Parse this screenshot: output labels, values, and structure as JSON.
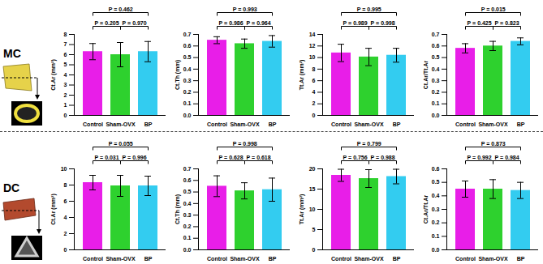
{
  "chart_data": [
    {
      "type": "bar",
      "panel_group": "MC",
      "ylabel": "Ct.Ar (mm²)",
      "categories": [
        "Control",
        "Sham-OVX",
        "BP"
      ],
      "values": [
        6.3,
        6.0,
        6.3
      ],
      "errors": [
        0.8,
        1.2,
        1.0
      ],
      "colors": [
        "#e81ee8",
        "#2ed12e",
        "#33ccf0"
      ],
      "ylim": [
        0,
        8
      ],
      "yticks": [
        0,
        1,
        2,
        3,
        4,
        5,
        6,
        7,
        8
      ],
      "p_values": [
        {
          "from": "Control",
          "to": "Sham-OVX",
          "label": "P = 0.205"
        },
        {
          "from": "Sham-OVX",
          "to": "BP",
          "label": "P = 0.970"
        },
        {
          "from": "Control",
          "to": "BP",
          "label": "P = 0.462"
        }
      ]
    },
    {
      "type": "bar",
      "panel_group": "MC",
      "ylabel": "Ct.Th (mm)",
      "categories": [
        "Control",
        "Sham-OVX",
        "BP"
      ],
      "values": [
        0.65,
        0.62,
        0.64
      ],
      "errors": [
        0.03,
        0.04,
        0.05
      ],
      "colors": [
        "#e81ee8",
        "#2ed12e",
        "#33ccf0"
      ],
      "ylim": [
        0,
        0.7
      ],
      "yticks": [
        {
          "value": 0,
          "label": "0.0"
        },
        0.1,
        0.2,
        0.3,
        0.4,
        0.5,
        0.6,
        0.7
      ],
      "p_values": [
        {
          "from": "Control",
          "to": "Sham-OVX",
          "label": "P = 0.986"
        },
        {
          "from": "Sham-OVX",
          "to": "BP",
          "label": "P = 0.964"
        },
        {
          "from": "Control",
          "to": "BP",
          "label": "P = 0.993"
        }
      ]
    },
    {
      "type": "bar",
      "panel_group": "MC",
      "ylabel": "Tt.Ar (mm²)",
      "categories": [
        "Control",
        "Sham-OVX",
        "BP"
      ],
      "values": [
        10.8,
        10.1,
        10.4
      ],
      "errors": [
        1.5,
        1.5,
        1.2
      ],
      "colors": [
        "#e81ee8",
        "#2ed12e",
        "#33ccf0"
      ],
      "ylim": [
        0,
        14
      ],
      "yticks": [
        0,
        2,
        4,
        6,
        8,
        10,
        12,
        14
      ],
      "p_values": [
        {
          "from": "Control",
          "to": "Sham-OVX",
          "label": "P = 0.989"
        },
        {
          "from": "Sham-OVX",
          "to": "BP",
          "label": "P = 0.998"
        },
        {
          "from": "Control",
          "to": "BP",
          "label": "P = 0.995"
        }
      ]
    },
    {
      "type": "bar",
      "panel_group": "MC",
      "ylabel": "Ct.Ar/Tt.Ar",
      "categories": [
        "Control",
        "Sham-OVX",
        "BP"
      ],
      "values": [
        0.58,
        0.6,
        0.64
      ],
      "errors": [
        0.04,
        0.04,
        0.03
      ],
      "colors": [
        "#e81ee8",
        "#2ed12e",
        "#33ccf0"
      ],
      "ylim": [
        0,
        0.7
      ],
      "yticks": [
        {
          "value": 0,
          "label": "0.0"
        },
        0.1,
        0.2,
        0.3,
        0.4,
        0.5,
        0.6,
        0.7
      ],
      "p_values": [
        {
          "from": "Control",
          "to": "Sham-OVX",
          "label": "P = 0.425"
        },
        {
          "from": "Sham-OVX",
          "to": "BP",
          "label": "P = 0.823"
        },
        {
          "from": "Control",
          "to": "BP",
          "label": "P = 0.015"
        }
      ]
    },
    {
      "type": "bar",
      "panel_group": "DC",
      "ylabel": "Ct.Ar (mm²)",
      "categories": [
        "Control",
        "Sham-OVX",
        "BP"
      ],
      "values": [
        8.3,
        7.9,
        7.9
      ],
      "errors": [
        0.9,
        1.3,
        1.2
      ],
      "colors": [
        "#e81ee8",
        "#2ed12e",
        "#33ccf0"
      ],
      "ylim": [
        0,
        10
      ],
      "yticks": [
        0,
        2,
        4,
        6,
        8,
        10
      ],
      "p_values": [
        {
          "from": "Control",
          "to": "Sham-OVX",
          "label": "P = 0.031"
        },
        {
          "from": "Sham-OVX",
          "to": "BP",
          "label": "P = 0.996"
        },
        {
          "from": "Control",
          "to": "BP",
          "label": "P = 0.055"
        }
      ]
    },
    {
      "type": "bar",
      "panel_group": "DC",
      "ylabel": "Ct.Th (mm)",
      "categories": [
        "Control",
        "Sham-OVX",
        "BP"
      ],
      "values": [
        0.55,
        0.51,
        0.52
      ],
      "errors": [
        0.09,
        0.07,
        0.1
      ],
      "colors": [
        "#e81ee8",
        "#2ed12e",
        "#33ccf0"
      ],
      "ylim": [
        0,
        0.7
      ],
      "yticks": [
        {
          "value": 0,
          "label": "0.0"
        },
        0.1,
        0.2,
        0.3,
        0.4,
        0.5,
        0.6,
        0.7
      ],
      "p_values": [
        {
          "from": "Control",
          "to": "Sham-OVX",
          "label": "P = 0.628"
        },
        {
          "from": "Sham-OVX",
          "to": "BP",
          "label": "P = 0.618"
        },
        {
          "from": "Control",
          "to": "BP",
          "label": "P = 0.998"
        }
      ]
    },
    {
      "type": "bar",
      "panel_group": "DC",
      "ylabel": "Tt.Ar (mm²)",
      "categories": [
        "Control",
        "Sham-OVX",
        "BP"
      ],
      "values": [
        18.4,
        17.6,
        18.1
      ],
      "errors": [
        1.5,
        2.2,
        1.8
      ],
      "colors": [
        "#e81ee8",
        "#2ed12e",
        "#33ccf0"
      ],
      "ylim": [
        0,
        20
      ],
      "yticks": [
        0,
        5,
        10,
        15,
        20
      ],
      "p_values": [
        {
          "from": "Control",
          "to": "Sham-OVX",
          "label": "P = 0.756"
        },
        {
          "from": "Sham-OVX",
          "to": "BP",
          "label": "P = 0.988"
        },
        {
          "from": "Control",
          "to": "BP",
          "label": "P = 0.799"
        }
      ]
    },
    {
      "type": "bar",
      "panel_group": "DC",
      "ylabel": "Ct.Ar/Tt.Ar",
      "categories": [
        "Control",
        "Sham-OVX",
        "BP"
      ],
      "values": [
        0.45,
        0.45,
        0.44
      ],
      "errors": [
        0.06,
        0.07,
        0.06
      ],
      "colors": [
        "#e81ee8",
        "#2ed12e",
        "#33ccf0"
      ],
      "ylim": [
        0,
        0.6
      ],
      "yticks": [
        {
          "value": 0,
          "label": "0.0"
        },
        0.1,
        0.2,
        0.3,
        0.4,
        0.5,
        0.6
      ],
      "p_values": [
        {
          "from": "Control",
          "to": "Sham-OVX",
          "label": "P = 0.992"
        },
        {
          "from": "Sham-OVX",
          "to": "BP",
          "label": "P = 0.984"
        },
        {
          "from": "Control",
          "to": "BP",
          "label": "P = 0.873"
        }
      ]
    }
  ]
}
